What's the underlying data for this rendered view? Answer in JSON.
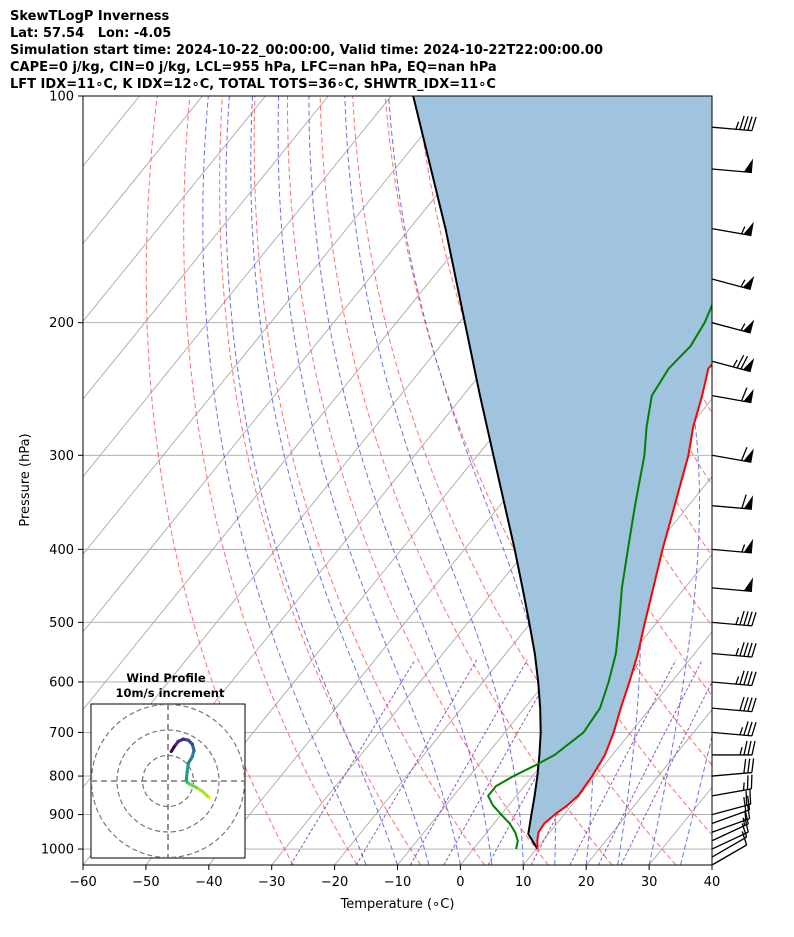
{
  "header": {
    "line1": "SkewTLogP Inverness",
    "line2": "Lat: 57.54   Lon: -4.05",
    "line3": "Simulation start time: 2024-10-22_00:00:00, Valid time: 2024-10-22T22:00:00.00",
    "line4": "CAPE=0 j/kg, CIN=0 j/kg, LCL=955 hPa, LFC=nan hPa, EQ=nan hPa",
    "line5": "LFT IDX=11∘C, K IDX=12∘C, TOTAL TOTS=36∘C, SHWTR_IDX=11∘C"
  },
  "chart_data": [
    {
      "type": "line",
      "subtype": "skew-t log-p",
      "xlabel": "Temperature (∘C)",
      "ylabel": "Pressure (hPa)",
      "xlim": [
        -60,
        40
      ],
      "ylim": [
        1050,
        100
      ],
      "y_scale": "log",
      "x_ticks": [
        "−60",
        "−50",
        "−40",
        "−30",
        "−20",
        "−10",
        "0",
        "10",
        "20",
        "30",
        "40"
      ],
      "x_tick_values": [
        -60,
        -50,
        -40,
        -30,
        -20,
        -10,
        0,
        10,
        20,
        30,
        40
      ],
      "y_ticks": [
        "100",
        "200",
        "300",
        "400",
        "500",
        "600",
        "700",
        "800",
        "900",
        "1000"
      ],
      "y_tick_values": [
        100,
        200,
        300,
        400,
        500,
        600,
        700,
        800,
        900,
        1000
      ],
      "grid": true,
      "colors": {
        "temperature": "#ff0000",
        "dewpoint": "#008000",
        "parcel": "#000000",
        "fill": "#a0c4de",
        "dry_adiabat": "#ff5555",
        "moist_adiabat": "#4b5be8",
        "mixing_ratio": "#8b3fbf",
        "isotherm": "#a9a9a9"
      },
      "series": [
        {
          "key": "temperature",
          "pressure": [
            1000,
            975,
            950,
            925,
            900,
            875,
            850,
            800,
            750,
            700,
            650,
            600,
            550,
            500,
            450,
            400,
            350,
            300,
            275,
            250,
            230,
            215,
            200,
            190,
            175,
            150,
            130,
            115,
            105,
            100
          ],
          "temp": [
            10.2,
            9.1,
            8.2,
            8.0,
            8.5,
            9.3,
            9.8,
            9.5,
            8.8,
            7.3,
            5.3,
            3.3,
            1.0,
            -1.9,
            -5.0,
            -8.5,
            -12.2,
            -16.5,
            -19.4,
            -22.0,
            -24.5,
            -24.0,
            -22.0,
            -19.0,
            -17.2,
            -13.2,
            -11.5,
            -10.0,
            -8.5,
            -7.5
          ]
        },
        {
          "key": "dewpoint",
          "pressure": [
            1000,
            975,
            950,
            925,
            900,
            875,
            850,
            825,
            800,
            775,
            750,
            700,
            650,
            600,
            550,
            500,
            450,
            400,
            350,
            300,
            275,
            250,
            230,
            215,
            200,
            190,
            175,
            150,
            130,
            115,
            105,
            100
          ],
          "temp": [
            6.8,
            6.0,
            4.5,
            2.5,
            0.0,
            -2.5,
            -4.5,
            -4.5,
            -3.0,
            -1.0,
            0.8,
            2.5,
            2.0,
            0.0,
            -2.5,
            -6.0,
            -10.0,
            -14.0,
            -18.5,
            -23.5,
            -26.8,
            -30.0,
            -30.8,
            -30.2,
            -31.0,
            -32.0,
            -33.5,
            -34.5,
            -32.0,
            -29.0,
            -26.5,
            -25.0
          ]
        },
        {
          "key": "parcel",
          "pressure": [
            1000,
            955,
            900,
            850,
            800,
            750,
            700,
            650,
            600,
            550,
            500,
            450,
            400,
            350,
            300,
            250,
            200,
            150,
            100
          ],
          "temp": [
            10.2,
            6.8,
            4.8,
            2.9,
            0.8,
            -1.6,
            -4.3,
            -7.5,
            -11.2,
            -15.4,
            -20.3,
            -25.8,
            -32.0,
            -39.2,
            -47.5,
            -57.3,
            -69.1,
            -84.3,
            -106.5
          ]
        }
      ],
      "wind_barbs": {
        "pressure": [
          1050,
          1025,
          1000,
          975,
          950,
          925,
          900,
          850,
          800,
          750,
          700,
          650,
          600,
          550,
          500,
          450,
          400,
          350,
          300,
          250,
          225,
          200,
          175,
          150,
          125,
          110
        ],
        "speed_kt": [
          10,
          10,
          10,
          15,
          15,
          20,
          20,
          25,
          30,
          35,
          35,
          40,
          45,
          45,
          45,
          50,
          55,
          60,
          60,
          60,
          75,
          55,
          55,
          55,
          50,
          45
        ],
        "dir_deg": [
          240,
          240,
          245,
          245,
          250,
          250,
          255,
          260,
          265,
          270,
          275,
          275,
          275,
          275,
          275,
          275,
          275,
          275,
          280,
          280,
          285,
          285,
          285,
          280,
          275,
          275
        ]
      },
      "mixing_ratio_lines_gkg": [
        0.4,
        1,
        2,
        3,
        5,
        8,
        12,
        16,
        20
      ]
    },
    {
      "type": "scatter",
      "subtype": "hodograph",
      "title": "Wind Profile",
      "subtitle": "10m/s increment",
      "rings_ms": [
        10,
        20,
        30
      ],
      "colormap": "viridis",
      "points_uv": [
        [
          16.3,
          -6.6
        ],
        [
          16.0,
          -6.3
        ],
        [
          15.5,
          -6.0
        ],
        [
          13.5,
          -4.0
        ],
        [
          11.0,
          -2.5
        ],
        [
          8.5,
          -1.2
        ],
        [
          7.5,
          -0.5
        ],
        [
          7.2,
          0.5
        ],
        [
          7.5,
          3.5
        ],
        [
          8.0,
          7.0
        ],
        [
          9.5,
          9.5
        ],
        [
          10.2,
          12.0
        ],
        [
          9.5,
          14.5
        ],
        [
          8.0,
          16.0
        ],
        [
          6.0,
          16.4
        ],
        [
          4.0,
          15.5
        ],
        [
          2.5,
          13.5
        ],
        [
          1.3,
          11.6
        ]
      ]
    }
  ]
}
